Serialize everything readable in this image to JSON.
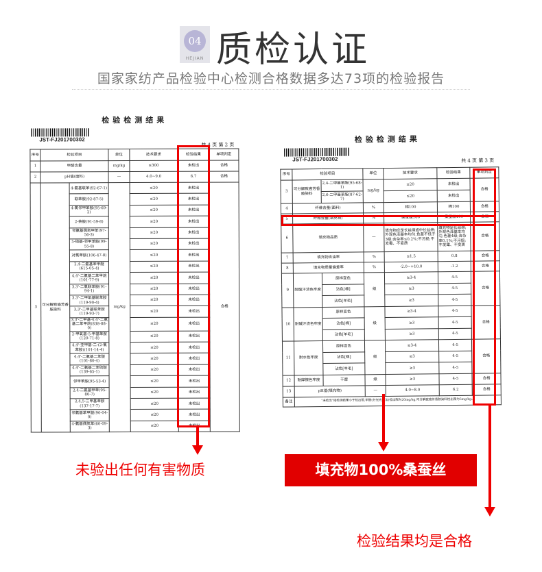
{
  "header": {
    "badge_number": "04",
    "badge_sub": "HEJIAN",
    "title": "质检认证",
    "subtitle": "国家家纺产品检验中心检测合格数据多达73项的检验报告"
  },
  "left_doc": {
    "title": "检验检测结果",
    "code": "JST-FJ201700302",
    "pages": "共 4 页  第 2 页",
    "headers": [
      "序号",
      "检验项目",
      "单位",
      "技术要求",
      "检验结果",
      "单项判定"
    ],
    "rows": [
      [
        "1",
        "甲醛含量",
        "mg/kg",
        "≤300",
        "未检出",
        "合格"
      ],
      [
        "2",
        "pH值(面料)",
        "—",
        "4.0~9.0",
        "6.7",
        "合格"
      ]
    ],
    "group": {
      "no": "3",
      "name": "可分解致癌芳香胺染料",
      "unit": "mg/kg",
      "verdict": "合格",
      "req": "≤20",
      "result": "未检出",
      "items": [
        "4-氨基联苯(92-67-1)",
        "联苯胺(92-87-5)",
        "4-氯邻甲苯胺(95-69-2)",
        "2-萘胺(91-59-8)",
        "邻氨基偶氮甲苯(97-56-3)",
        "5-硝基-邻甲苯胺(99-55-8)",
        "对氯苯胺(106-47-8)",
        "2,4-二氨基苯甲醚(615-05-4)",
        "4,4'-二氨基二苯甲烷(101-77-9)",
        "3,3'-二氯联苯胺(91-94-1)",
        "3,3'-二甲氧基联苯胺(119-90-4)",
        "3,3'-二甲基联苯胺(119-93-7)",
        "3,3'-二甲基-4,4'-二氨基二苯甲烷(838-88-0)",
        "2-甲氧基-5-甲基苯胺(120-71-8)",
        "4,4'-亚甲基-二-(2-氯苯胺)(101-14-4)",
        "4,4'-二氨基二苯醚(101-80-4)",
        "4,4'-二氨基二苯硫醚(139-65-1)",
        "邻甲苯胺(95-53-4)",
        "2,4-二氨基甲苯(95-80-7)",
        "2,4,5-三甲基苯胺(137-17-7)",
        "邻氨基苯甲醚(90-04-0)",
        "4-氨基偶氮苯(60-09-3)"
      ]
    }
  },
  "right_doc": {
    "title": "检验检测结果",
    "code": "JST-FJ201700302",
    "pages": "共 4 页  第 3 页",
    "headers": [
      "序号",
      "检验项目",
      "单位",
      "技术要求",
      "检验结果",
      "单项判定"
    ],
    "r3": {
      "no": "3",
      "name": "可分解致癌芳香胺染料",
      "unit": "mg/kg",
      "verdict": "合格",
      "subs": [
        [
          "2,4-二甲基苯胺(95-68-1)",
          "≤20",
          "未检出"
        ],
        [
          "2,6-二甲基苯胺(87-62-7)",
          "≤20",
          "未检出"
        ]
      ]
    },
    "simple1": [
      [
        "4",
        "纤维含量(面料)",
        "%",
        "棉100",
        "棉100",
        "合格"
      ],
      [
        "5",
        "纤维含量(填充物)",
        "%",
        "桑蚕丝100",
        "桑蚕丝100",
        "合格"
      ],
      [
        "6",
        "填充物品质",
        "—",
        "填充物应是长丝绵或中长丝绵;外观色泽基本均匀,色差不低于3级;含杂率≤0.2%;不污损;不发霉、不变质",
        "填充物是长丝绵;外观色泽基本均匀,色差4级;含杂率0.1%;不污损;不发霉、不变质",
        "合格"
      ],
      [
        "7",
        "填充物含油率",
        "%",
        "≤1.5",
        "0.8",
        "合格"
      ],
      [
        "8",
        "填充物质量偏差率",
        "%",
        "-2.0~+10.0",
        "-1.2",
        "合格"
      ]
    ],
    "fastness": [
      {
        "no": "9",
        "name": "耐酸汗渍色牢度",
        "unit": "级",
        "verdict": "合格",
        "subs": [
          [
            "原样变色",
            "≥3-4",
            "4-5"
          ],
          [
            "沾色[棉]",
            "≥3",
            "4-5"
          ],
          [
            "沾色[羊毛]",
            "≥3",
            "4-5"
          ]
        ]
      },
      {
        "no": "10",
        "name": "耐碱汗渍色牢度",
        "unit": "级",
        "verdict": "合格",
        "subs": [
          [
            "原样变色",
            "≥3-4",
            "4-5"
          ],
          [
            "沾色[棉]",
            "≥3",
            "4-5"
          ],
          [
            "沾色[羊毛]",
            "≥3",
            "4-5"
          ]
        ]
      },
      {
        "no": "11",
        "name": "耐水色牢度",
        "unit": "级",
        "verdict": "合格",
        "subs": [
          [
            "原样变色",
            "≥3-4",
            "4-5"
          ],
          [
            "沾色[棉]",
            "≥3",
            "4-5"
          ],
          [
            "沾色[羊毛]",
            "≥3",
            "4-5"
          ]
        ]
      }
    ],
    "r12": [
      "12",
      "耐摩擦色牢度",
      "干摩",
      "级",
      "≥3",
      "4-5",
      "合格"
    ],
    "r13": [
      "13",
      "pH值(填充物)",
      "—",
      "4.0~8.0",
      "6.2",
      "合格"
    ],
    "note_label": "备注",
    "note": "\"未检出\"指检测结果小于检出限,甲醛(分光光度法)检出限为20mg/kg,可分解致癌芳香胺染料检出限为5mg/kg。"
  },
  "callouts": {
    "left": "未验出任何有害物质",
    "middle": "填充物100%桑蚕丝",
    "right": "检验结果均是合格"
  },
  "colors": {
    "accent": "#e00000"
  }
}
